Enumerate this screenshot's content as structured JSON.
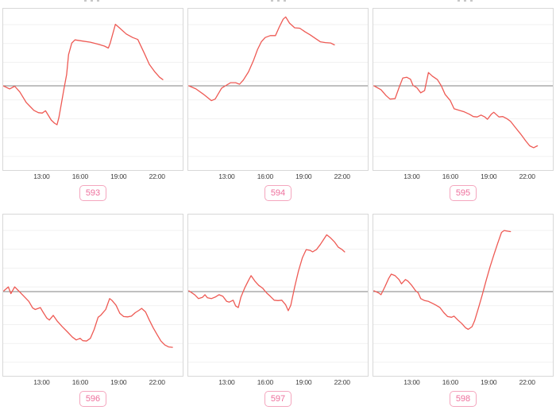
{
  "layout": {
    "rows": 2,
    "cols": 3,
    "note_y_axis": "no y tick labels visible; values estimated relative to gray baseline (0), one faint gridline step ~0.48 units"
  },
  "style": {
    "line_color": "#ee5a54",
    "baseline_color": "#828282",
    "grid_color": "#f1f1f1",
    "plot_border_color": "#d8d8d8",
    "tick_label_color": "#3d3d3d",
    "badge_text_color": "#ee6f9c",
    "badge_border_color": "#f4a6be",
    "background_color": "#ffffff"
  },
  "chart_data": [
    {
      "type": "line",
      "badge_label": "593",
      "x_ticks": [
        "13:00",
        "16:00",
        "19:00",
        "22:00"
      ],
      "x_tick_hours": [
        13,
        16,
        19,
        22
      ],
      "xlim": [
        10,
        24
      ],
      "ylim": [
        -2.16,
        1.98
      ],
      "baseline": 0,
      "grid": "horizontal-faint",
      "points": {
        "x": [
          10.0,
          10.5,
          10.9,
          11.3,
          11.8,
          12.1,
          12.4,
          12.75,
          13.05,
          13.3,
          13.75,
          14.0,
          14.2,
          14.35,
          14.55,
          14.75,
          14.95,
          15.1,
          15.35,
          15.6,
          16.2,
          16.8,
          17.4,
          17.9,
          18.2,
          18.35,
          18.75,
          19.1,
          19.6,
          20.1,
          20.5,
          21.0,
          21.4,
          21.8,
          22.2,
          22.45
        ],
        "y": [
          0.0,
          -0.08,
          -0.01,
          -0.16,
          -0.43,
          -0.53,
          -0.63,
          -0.69,
          -0.7,
          -0.64,
          -0.88,
          -0.96,
          -1.0,
          -0.81,
          -0.43,
          -0.06,
          0.29,
          0.8,
          1.1,
          1.18,
          1.15,
          1.12,
          1.07,
          1.02,
          0.97,
          1.1,
          1.58,
          1.48,
          1.33,
          1.24,
          1.19,
          0.84,
          0.55,
          0.37,
          0.22,
          0.16
        ]
      }
    },
    {
      "type": "line",
      "badge_label": "594",
      "x_ticks": [
        "13:00",
        "16:00",
        "19:00",
        "22:00"
      ],
      "x_tick_hours": [
        13,
        16,
        19,
        22
      ],
      "xlim": [
        10,
        24
      ],
      "ylim": [
        -2.16,
        1.98
      ],
      "baseline": 0,
      "grid": "horizontal-faint",
      "points": {
        "x": [
          10.05,
          10.6,
          11.2,
          11.8,
          12.1,
          12.6,
          12.9,
          13.3,
          13.7,
          14.0,
          14.3,
          14.7,
          15.1,
          15.4,
          15.7,
          16.0,
          16.4,
          16.8,
          17.1,
          17.4,
          17.6,
          17.9,
          18.3,
          18.7,
          19.1,
          19.5,
          19.9,
          20.3,
          20.7,
          21.1,
          21.4
        ],
        "y": [
          0.0,
          -0.08,
          -0.22,
          -0.38,
          -0.34,
          -0.06,
          0.0,
          0.08,
          0.08,
          0.04,
          0.15,
          0.36,
          0.66,
          0.93,
          1.13,
          1.24,
          1.29,
          1.29,
          1.51,
          1.71,
          1.77,
          1.61,
          1.49,
          1.48,
          1.39,
          1.31,
          1.22,
          1.13,
          1.11,
          1.1,
          1.05
        ]
      }
    },
    {
      "type": "line",
      "badge_label": "595",
      "x_ticks": [
        "13:00",
        "16:00",
        "19:00",
        "22:00"
      ],
      "x_tick_hours": [
        13,
        16,
        19,
        22
      ],
      "xlim": [
        10,
        24
      ],
      "ylim": [
        -2.16,
        1.98
      ],
      "baseline": 0,
      "grid": "horizontal-faint",
      "points": {
        "x": [
          10.05,
          10.6,
          11.0,
          11.3,
          11.7,
          12.0,
          12.3,
          12.6,
          12.9,
          13.1,
          13.4,
          13.7,
          14.0,
          14.3,
          14.6,
          15.0,
          15.3,
          15.6,
          16.0,
          16.3,
          16.7,
          17.1,
          17.5,
          17.8,
          18.1,
          18.4,
          18.7,
          18.9,
          19.2,
          19.4,
          19.8,
          20.1,
          20.4,
          20.7,
          21.1,
          21.5,
          21.9,
          22.2,
          22.5,
          22.8
        ],
        "y": [
          0.0,
          -0.1,
          -0.25,
          -0.34,
          -0.33,
          -0.05,
          0.2,
          0.22,
          0.17,
          0.01,
          -0.05,
          -0.18,
          -0.12,
          0.34,
          0.25,
          0.16,
          0.0,
          -0.22,
          -0.38,
          -0.59,
          -0.63,
          -0.67,
          -0.73,
          -0.79,
          -0.8,
          -0.75,
          -0.8,
          -0.86,
          -0.73,
          -0.68,
          -0.8,
          -0.79,
          -0.84,
          -0.91,
          -1.08,
          -1.24,
          -1.42,
          -1.54,
          -1.59,
          -1.54
        ]
      }
    },
    {
      "type": "line",
      "badge_label": "596",
      "x_ticks": [
        "13:00",
        "16:00",
        "19:00",
        "22:00"
      ],
      "x_tick_hours": [
        13,
        16,
        19,
        22
      ],
      "xlim": [
        10,
        24
      ],
      "ylim": [
        -2.2,
        1.98
      ],
      "baseline": 0,
      "grid": "horizontal-faint",
      "points": {
        "x": [
          10.05,
          10.4,
          10.6,
          10.9,
          11.2,
          11.5,
          12.0,
          12.3,
          12.5,
          12.9,
          13.1,
          13.4,
          13.6,
          13.9,
          14.2,
          14.6,
          15.0,
          15.4,
          15.7,
          16.0,
          16.2,
          16.5,
          16.8,
          17.1,
          17.4,
          17.6,
          18.0,
          18.3,
          18.5,
          18.8,
          19.1,
          19.4,
          19.7,
          20.0,
          20.3,
          20.6,
          20.8,
          21.1,
          21.4,
          21.7,
          22.0,
          22.3,
          22.6,
          22.9,
          23.2
        ],
        "y": [
          0.02,
          0.12,
          -0.05,
          0.12,
          0.02,
          -0.08,
          -0.25,
          -0.42,
          -0.46,
          -0.41,
          -0.52,
          -0.68,
          -0.73,
          -0.61,
          -0.75,
          -0.9,
          -1.03,
          -1.17,
          -1.24,
          -1.2,
          -1.26,
          -1.27,
          -1.2,
          -0.97,
          -0.66,
          -0.61,
          -0.46,
          -0.18,
          -0.23,
          -0.35,
          -0.56,
          -0.64,
          -0.65,
          -0.63,
          -0.54,
          -0.48,
          -0.43,
          -0.52,
          -0.73,
          -0.93,
          -1.1,
          -1.27,
          -1.37,
          -1.42,
          -1.43
        ]
      }
    },
    {
      "type": "line",
      "badge_label": "597",
      "x_ticks": [
        "13:00",
        "16:00",
        "19:00",
        "22:00"
      ],
      "x_tick_hours": [
        13,
        16,
        19,
        22
      ],
      "xlim": [
        10,
        24
      ],
      "ylim": [
        -2.2,
        1.98
      ],
      "baseline": 0,
      "grid": "horizontal-faint",
      "points": {
        "x": [
          10.05,
          10.5,
          10.8,
          11.1,
          11.3,
          11.5,
          11.8,
          12.1,
          12.4,
          12.7,
          13.0,
          13.2,
          13.5,
          13.7,
          13.9,
          14.1,
          14.4,
          14.7,
          14.9,
          15.2,
          15.5,
          15.8,
          16.1,
          16.4,
          16.7,
          17.0,
          17.3,
          17.6,
          17.8,
          18.0,
          18.3,
          18.6,
          18.9,
          19.2,
          19.5,
          19.7,
          20.0,
          20.3,
          20.6,
          20.8,
          21.1,
          21.4,
          21.7,
          22.0,
          22.2
        ],
        "y": [
          0.02,
          -0.08,
          -0.18,
          -0.15,
          -0.08,
          -0.16,
          -0.18,
          -0.14,
          -0.08,
          -0.12,
          -0.25,
          -0.27,
          -0.22,
          -0.37,
          -0.41,
          -0.15,
          0.09,
          0.29,
          0.41,
          0.27,
          0.16,
          0.09,
          -0.03,
          -0.12,
          -0.22,
          -0.23,
          -0.22,
          -0.34,
          -0.49,
          -0.35,
          0.12,
          0.53,
          0.87,
          1.08,
          1.06,
          1.02,
          1.08,
          1.21,
          1.36,
          1.46,
          1.38,
          1.28,
          1.14,
          1.08,
          1.02
        ]
      }
    },
    {
      "type": "line",
      "badge_label": "598",
      "x_ticks": [
        "13:00",
        "16:00",
        "19:00",
        "22:00"
      ],
      "x_tick_hours": [
        13,
        16,
        19,
        22
      ],
      "xlim": [
        10,
        24
      ],
      "ylim": [
        -2.2,
        1.98
      ],
      "baseline": 0,
      "grid": "horizontal-faint",
      "points": {
        "x": [
          10.05,
          10.4,
          10.6,
          10.9,
          11.2,
          11.4,
          11.7,
          12.0,
          12.2,
          12.5,
          12.7,
          13.0,
          13.3,
          13.5,
          13.7,
          14.0,
          14.3,
          14.6,
          14.9,
          15.2,
          15.5,
          15.8,
          16.1,
          16.3,
          16.6,
          16.9,
          17.2,
          17.4,
          17.7,
          17.9,
          18.2,
          18.5,
          18.8,
          19.1,
          19.4,
          19.7,
          20.0,
          20.2,
          20.5,
          20.7
        ],
        "y": [
          0.02,
          -0.03,
          -0.08,
          0.12,
          0.34,
          0.45,
          0.41,
          0.31,
          0.2,
          0.31,
          0.27,
          0.16,
          0.02,
          -0.03,
          -0.18,
          -0.23,
          -0.25,
          -0.3,
          -0.35,
          -0.41,
          -0.54,
          -0.64,
          -0.66,
          -0.63,
          -0.73,
          -0.82,
          -0.93,
          -0.97,
          -0.9,
          -0.75,
          -0.42,
          -0.08,
          0.29,
          0.63,
          0.94,
          1.24,
          1.52,
          1.57,
          1.55,
          1.54
        ]
      }
    }
  ]
}
